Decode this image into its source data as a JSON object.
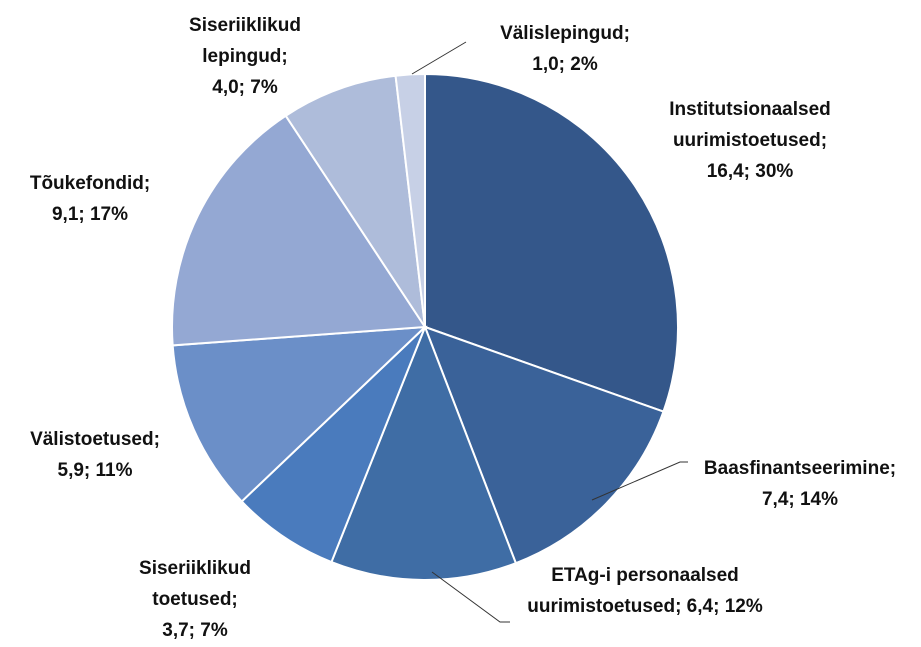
{
  "chart_data": {
    "type": "pie",
    "categories": [
      "Institutsionaalsed uurimistoetused;",
      "Baasfinantseerimine;",
      "ETAg-i personaalsed uurimistoetused;",
      "Siseriiklikud toetused;",
      "Välistoetused;",
      "Tõukefondid;",
      "Siseriiklikud lepingud;",
      "Välislepingud;"
    ],
    "values": [
      16.4,
      7.4,
      6.4,
      3.7,
      5.9,
      9.1,
      4.0,
      1.0
    ],
    "value_labels": [
      "16,4; 30%",
      "7,4; 14%",
      "6,4; 12%",
      "3,7; 7%",
      "5,9; 11%",
      "9,1; 17%",
      "4,0; 7%",
      "1,0; 2%"
    ],
    "colors": [
      "#34578a",
      "#3a6299",
      "#3f6da5",
      "#4a7bbd",
      "#6b8fc8",
      "#94a8d3",
      "#aebcda",
      "#c7d0e6"
    ]
  }
}
